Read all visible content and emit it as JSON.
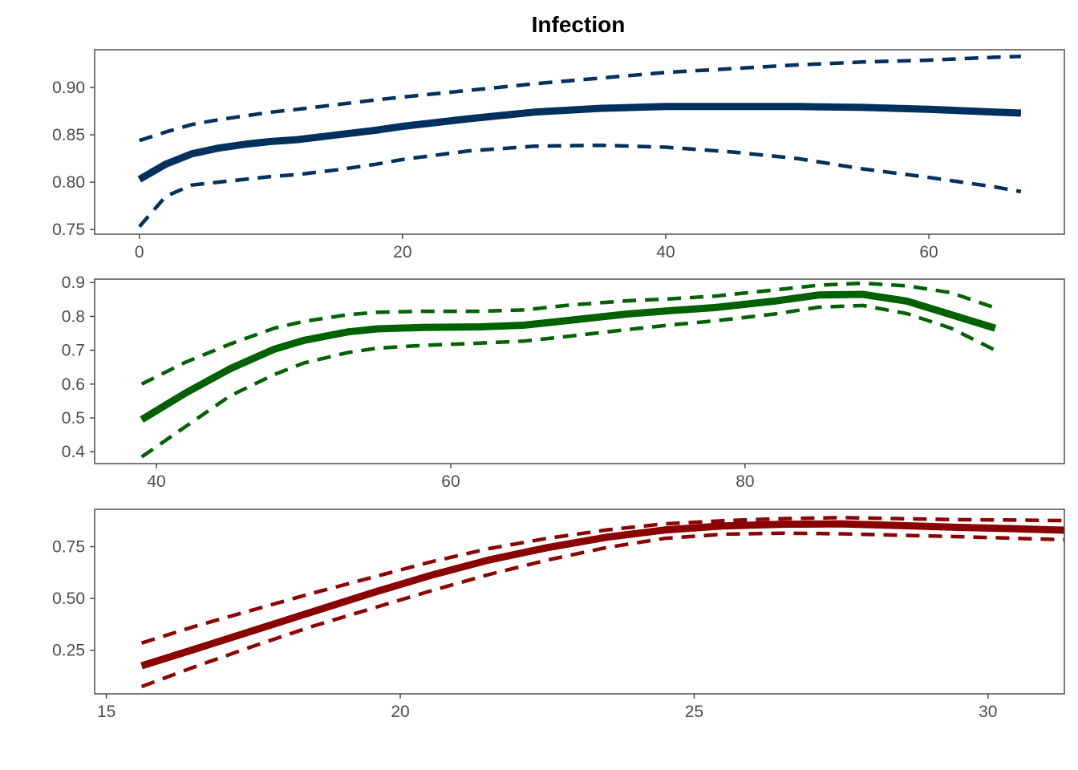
{
  "chart_data": {
    "type": "line",
    "title": "Infection",
    "panels": [
      {
        "color": "#00305e",
        "xlim": [
          -3.4,
          70.3
        ],
        "ylim": [
          0.745,
          0.94
        ],
        "x_ticks": [
          0,
          20,
          40,
          60
        ],
        "y_ticks": [
          0.75,
          0.8,
          0.85,
          0.9
        ],
        "y_tick_labels": [
          "0.75",
          "0.80",
          "0.85",
          "0.90"
        ],
        "series": [
          {
            "line": "fit",
            "x": [
              0,
              2,
              4,
              6,
              8,
              10,
              12,
              15,
              18,
              20,
              25,
              30,
              35,
              40,
              45,
              50,
              55,
              60,
              65,
              67
            ],
            "y": [
              0.803,
              0.819,
              0.83,
              0.836,
              0.84,
              0.843,
              0.845,
              0.85,
              0.855,
              0.859,
              0.867,
              0.874,
              0.878,
              0.88,
              0.88,
              0.88,
              0.879,
              0.877,
              0.874,
              0.873
            ]
          },
          {
            "line": "upper",
            "x": [
              0,
              2,
              4,
              6,
              8,
              10,
              12,
              15,
              18,
              20,
              25,
              30,
              35,
              40,
              45,
              50,
              55,
              60,
              65,
              67
            ],
            "y": [
              0.844,
              0.853,
              0.861,
              0.866,
              0.87,
              0.874,
              0.877,
              0.882,
              0.887,
              0.89,
              0.897,
              0.904,
              0.91,
              0.916,
              0.92,
              0.924,
              0.927,
              0.929,
              0.932,
              0.933
            ]
          },
          {
            "line": "lower",
            "x": [
              0,
              2,
              4,
              6,
              8,
              10,
              12,
              15,
              18,
              20,
              25,
              30,
              35,
              40,
              45,
              50,
              55,
              60,
              65,
              67
            ],
            "y": [
              0.753,
              0.785,
              0.797,
              0.8,
              0.803,
              0.806,
              0.808,
              0.813,
              0.819,
              0.824,
              0.833,
              0.838,
              0.839,
              0.837,
              0.832,
              0.825,
              0.814,
              0.805,
              0.795,
              0.79
            ]
          }
        ]
      },
      {
        "color": "#006100",
        "xlim": [
          35.8,
          101.7
        ],
        "ylim": [
          0.365,
          0.91
        ],
        "x_ticks": [
          40,
          60,
          80
        ],
        "y_ticks": [
          0.4,
          0.5,
          0.6,
          0.7,
          0.8,
          0.9
        ],
        "y_tick_labels": [
          "0.4",
          "0.5",
          "0.6",
          "0.7",
          "0.8",
          "0.9"
        ],
        "series": [
          {
            "line": "fit",
            "x": [
              39,
              42,
              45,
              48,
              50,
              53,
              55,
              58,
              62,
              65,
              68,
              72,
              75,
              78,
              82,
              85,
              88,
              91,
              94,
              97
            ],
            "y": [
              0.495,
              0.574,
              0.645,
              0.703,
              0.729,
              0.754,
              0.763,
              0.767,
              0.769,
              0.774,
              0.788,
              0.807,
              0.817,
              0.826,
              0.845,
              0.863,
              0.865,
              0.845,
              0.805,
              0.765
            ]
          },
          {
            "line": "upper",
            "x": [
              39,
              42,
              45,
              48,
              50,
              53,
              55,
              58,
              62,
              65,
              68,
              72,
              75,
              78,
              82,
              85,
              88,
              91,
              94,
              97
            ],
            "y": [
              0.6,
              0.665,
              0.718,
              0.765,
              0.785,
              0.805,
              0.812,
              0.815,
              0.815,
              0.819,
              0.833,
              0.846,
              0.852,
              0.86,
              0.878,
              0.892,
              0.898,
              0.89,
              0.87,
              0.825
            ]
          },
          {
            "line": "lower",
            "x": [
              39,
              42,
              45,
              48,
              50,
              53,
              55,
              58,
              62,
              65,
              68,
              72,
              75,
              78,
              82,
              85,
              88,
              91,
              94,
              97
            ],
            "y": [
              0.385,
              0.475,
              0.565,
              0.628,
              0.662,
              0.693,
              0.706,
              0.714,
              0.721,
              0.727,
              0.741,
              0.761,
              0.775,
              0.787,
              0.807,
              0.827,
              0.832,
              0.808,
              0.765,
              0.7
            ]
          }
        ]
      },
      {
        "color": "#8b0000",
        "xlim": [
          14.8,
          31.3
        ],
        "ylim": [
          0.04,
          0.93
        ],
        "x_ticks": [
          15,
          20,
          25,
          30
        ],
        "y_ticks": [
          0.25,
          0.5,
          0.75
        ],
        "y_tick_labels": [
          "0.25",
          "0.50",
          "0.75"
        ],
        "series": [
          {
            "line": "fit",
            "x": [
              15.6,
              16.5,
              17.5,
              18.5,
              19.5,
              20.5,
              21.5,
              22.5,
              23.5,
              24.5,
              25.5,
              26.5,
              27.5,
              28.5,
              29.5,
              30.5,
              31.5
            ],
            "y": [
              0.175,
              0.255,
              0.345,
              0.435,
              0.525,
              0.61,
              0.685,
              0.745,
              0.795,
              0.83,
              0.85,
              0.858,
              0.86,
              0.852,
              0.843,
              0.836,
              0.828
            ]
          },
          {
            "line": "upper",
            "x": [
              15.6,
              16.5,
              17.5,
              18.5,
              19.5,
              20.5,
              21.5,
              22.5,
              23.5,
              24.5,
              25.5,
              26.5,
              27.5,
              28.5,
              29.5,
              30.5,
              31.5
            ],
            "y": [
              0.285,
              0.365,
              0.445,
              0.525,
              0.6,
              0.675,
              0.74,
              0.79,
              0.83,
              0.86,
              0.875,
              0.885,
              0.89,
              0.885,
              0.88,
              0.878,
              0.875
            ]
          },
          {
            "line": "lower",
            "x": [
              15.6,
              16.5,
              17.5,
              18.5,
              19.5,
              20.5,
              21.5,
              22.5,
              23.5,
              24.5,
              25.5,
              26.5,
              27.5,
              28.5,
              29.5,
              30.5,
              31.5
            ],
            "y": [
              0.075,
              0.17,
              0.27,
              0.365,
              0.45,
              0.535,
              0.615,
              0.685,
              0.745,
              0.79,
              0.81,
              0.815,
              0.812,
              0.805,
              0.798,
              0.79,
              0.782
            ]
          }
        ]
      }
    ]
  }
}
